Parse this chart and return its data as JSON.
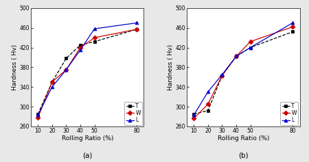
{
  "x": [
    10,
    20,
    30,
    40,
    50,
    80
  ],
  "panel_a": {
    "T": [
      285,
      350,
      398,
      425,
      432,
      457
    ],
    "W": [
      278,
      350,
      375,
      420,
      440,
      457
    ],
    "L": [
      283,
      340,
      375,
      415,
      458,
      470
    ]
  },
  "panel_b": {
    "T": [
      285,
      292,
      363,
      402,
      420,
      452
    ],
    "W": [
      276,
      305,
      363,
      402,
      432,
      462
    ],
    "L": [
      283,
      330,
      365,
      402,
      420,
      470
    ]
  },
  "colors": {
    "T": "#000000",
    "W": "#cc0000",
    "L": "#0000cc"
  },
  "markers": {
    "T": "s",
    "W": "D",
    "L": "^"
  },
  "linestyles": {
    "T": "--",
    "W": "-",
    "L": "-"
  },
  "ylabel": "Hardness ( Hv)",
  "xlabel": "Rolling Ratio (%)",
  "ylim": [
    260,
    500
  ],
  "xlim": [
    5,
    85
  ],
  "xticks": [
    10,
    20,
    30,
    40,
    50,
    80
  ],
  "yticks": [
    260,
    300,
    340,
    380,
    420,
    460,
    500
  ],
  "label_a": "(a)",
  "label_b": "(b)",
  "legend_labels": [
    "T",
    "W",
    "L"
  ],
  "markersize": 3.5,
  "linewidth": 0.9,
  "fontsize_label": 6.5,
  "fontsize_tick": 5.5,
  "fontsize_legend": 5.5,
  "fontsize_panel": 7.5,
  "bg_color": "#e8e8e8"
}
